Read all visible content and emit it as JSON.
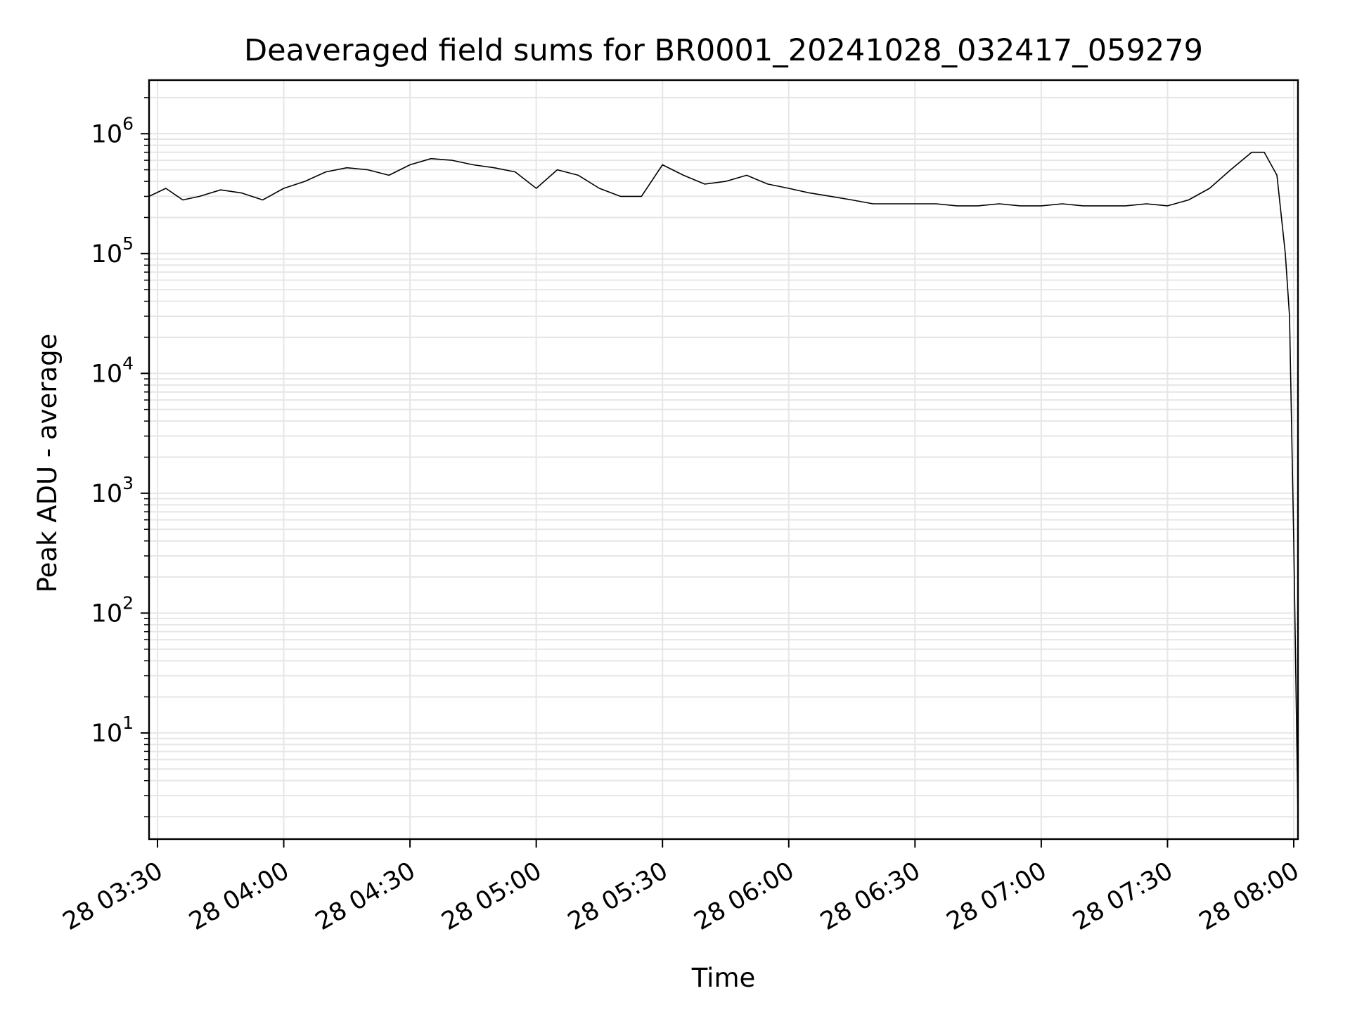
{
  "chart_data": {
    "type": "line",
    "title": "Deaveraged field sums for BR0001_20241028_032417_059279",
    "xlabel": "Time",
    "ylabel": "Peak ADU - average",
    "yscale": "log",
    "ylim": [
      1.3,
      2800000
    ],
    "xlim": [
      "2024-10-28 03:28",
      "2024-10-28 08:01"
    ],
    "grid": true,
    "x_ticks": [
      "28 03:30",
      "28 04:00",
      "28 04:30",
      "28 05:00",
      "28 05:30",
      "28 06:00",
      "28 06:30",
      "28 07:00",
      "28 07:30",
      "28 08:00"
    ],
    "y_ticks": [
      {
        "value": 10,
        "base": "10",
        "exp": "1"
      },
      {
        "value": 100,
        "base": "10",
        "exp": "2"
      },
      {
        "value": 1000,
        "base": "10",
        "exp": "3"
      },
      {
        "value": 10000,
        "base": "10",
        "exp": "4"
      },
      {
        "value": 100000,
        "base": "10",
        "exp": "5"
      },
      {
        "value": 1000000,
        "base": "10",
        "exp": "6"
      }
    ],
    "series": [
      {
        "color": "#000000",
        "points": [
          [
            "2024-10-28 03:28",
            300000
          ],
          [
            "2024-10-28 03:32",
            350000
          ],
          [
            "2024-10-28 03:36",
            280000
          ],
          [
            "2024-10-28 03:40",
            300000
          ],
          [
            "2024-10-28 03:45",
            340000
          ],
          [
            "2024-10-28 03:50",
            320000
          ],
          [
            "2024-10-28 03:55",
            280000
          ],
          [
            "2024-10-28 04:00",
            350000
          ],
          [
            "2024-10-28 04:05",
            400000
          ],
          [
            "2024-10-28 04:10",
            480000
          ],
          [
            "2024-10-28 04:15",
            520000
          ],
          [
            "2024-10-28 04:20",
            500000
          ],
          [
            "2024-10-28 04:25",
            450000
          ],
          [
            "2024-10-28 04:30",
            550000
          ],
          [
            "2024-10-28 04:35",
            620000
          ],
          [
            "2024-10-28 04:40",
            600000
          ],
          [
            "2024-10-28 04:45",
            550000
          ],
          [
            "2024-10-28 04:50",
            520000
          ],
          [
            "2024-10-28 04:55",
            480000
          ],
          [
            "2024-10-28 05:00",
            350000
          ],
          [
            "2024-10-28 05:05",
            500000
          ],
          [
            "2024-10-28 05:10",
            450000
          ],
          [
            "2024-10-28 05:15",
            350000
          ],
          [
            "2024-10-28 05:20",
            300000
          ],
          [
            "2024-10-28 05:25",
            300000
          ],
          [
            "2024-10-28 05:30",
            550000
          ],
          [
            "2024-10-28 05:35",
            450000
          ],
          [
            "2024-10-28 05:40",
            380000
          ],
          [
            "2024-10-28 05:45",
            400000
          ],
          [
            "2024-10-28 05:50",
            450000
          ],
          [
            "2024-10-28 05:55",
            380000
          ],
          [
            "2024-10-28 06:00",
            350000
          ],
          [
            "2024-10-28 06:05",
            320000
          ],
          [
            "2024-10-28 06:10",
            300000
          ],
          [
            "2024-10-28 06:15",
            280000
          ],
          [
            "2024-10-28 06:20",
            260000
          ],
          [
            "2024-10-28 06:25",
            260000
          ],
          [
            "2024-10-28 06:30",
            260000
          ],
          [
            "2024-10-28 06:35",
            260000
          ],
          [
            "2024-10-28 06:40",
            250000
          ],
          [
            "2024-10-28 06:45",
            250000
          ],
          [
            "2024-10-28 06:50",
            260000
          ],
          [
            "2024-10-28 06:55",
            250000
          ],
          [
            "2024-10-28 07:00",
            250000
          ],
          [
            "2024-10-28 07:05",
            260000
          ],
          [
            "2024-10-28 07:10",
            250000
          ],
          [
            "2024-10-28 07:15",
            250000
          ],
          [
            "2024-10-28 07:20",
            250000
          ],
          [
            "2024-10-28 07:25",
            260000
          ],
          [
            "2024-10-28 07:30",
            250000
          ],
          [
            "2024-10-28 07:35",
            280000
          ],
          [
            "2024-10-28 07:40",
            350000
          ],
          [
            "2024-10-28 07:45",
            500000
          ],
          [
            "2024-10-28 07:50",
            700000
          ],
          [
            "2024-10-28 07:53",
            700000
          ],
          [
            "2024-10-28 07:56",
            450000
          ],
          [
            "2024-10-28 07:58",
            100000
          ],
          [
            "2024-10-28 07:59",
            30000
          ],
          [
            "2024-10-28 08:00",
            400
          ],
          [
            "2024-10-28 08:01",
            2
          ]
        ]
      }
    ]
  }
}
